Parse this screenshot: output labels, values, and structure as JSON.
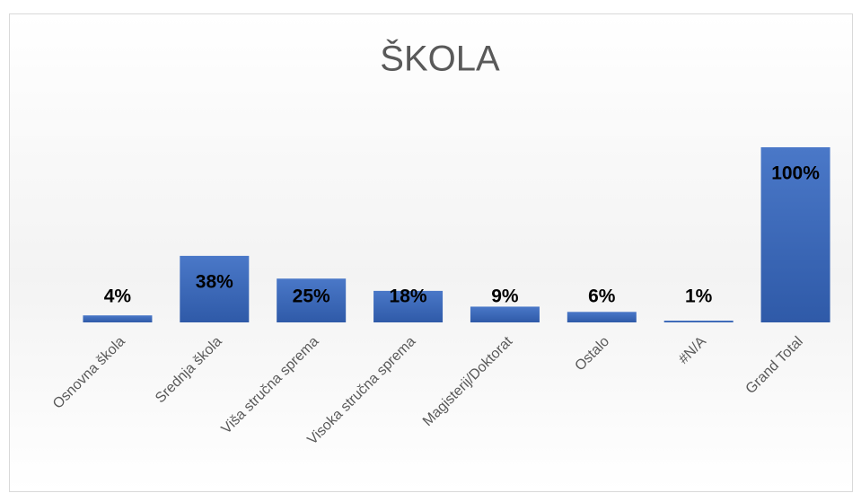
{
  "chart_data": {
    "type": "bar",
    "title": "ŠKOLA",
    "categories": [
      "Osnovna škola",
      "Srednja škola",
      "Viša stručna sprema",
      "Visoka stručna sprema",
      "Magisterij/Doktorat",
      "Ostalo",
      "#N/A",
      "Grand Total"
    ],
    "values": [
      4,
      38,
      25,
      18,
      9,
      6,
      1,
      100
    ],
    "value_labels": [
      "4%",
      "38%",
      "25%",
      "18%",
      "9%",
      "6%",
      "1%",
      "100%"
    ],
    "color": "#4472c4"
  }
}
